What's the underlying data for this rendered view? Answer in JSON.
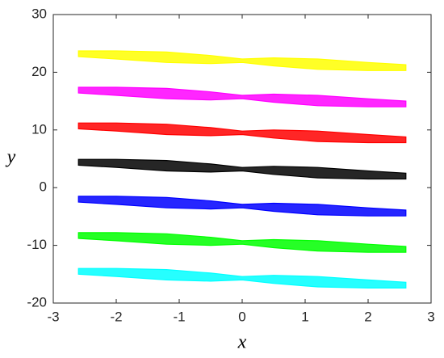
{
  "chart_data": {
    "type": "area",
    "x_label": "x",
    "y_label": "y",
    "xlim": [
      -3,
      3
    ],
    "xticks": [
      -3,
      -2,
      -1,
      0,
      1,
      2,
      3
    ],
    "ylim": [
      -20,
      30
    ],
    "yticks": [
      -20,
      -10,
      0,
      10,
      20,
      30
    ],
    "series": [
      {
        "color": "#ffff00",
        "x": [
          -2.6,
          -2,
          -1.2,
          -0.5,
          0,
          0.5,
          1.2,
          2,
          2.6,
          2.6,
          2,
          1.2,
          0.5,
          0,
          -0.5,
          -1.2,
          -2,
          -2.6
        ],
        "values": [
          23.7,
          23.7,
          23.5,
          22.9,
          22.3,
          22.5,
          22.3,
          21.7,
          21.3,
          20.3,
          20.3,
          20.5,
          21.1,
          21.7,
          21.5,
          21.7,
          22.3,
          22.7
        ]
      },
      {
        "color": "#ff00ff",
        "x": [
          -2.6,
          -2,
          -1.2,
          -0.5,
          0,
          0.5,
          1.2,
          2,
          2.6,
          2.6,
          2,
          1.2,
          0.5,
          0,
          -0.5,
          -1.2,
          -2,
          -2.6
        ],
        "values": [
          17.4,
          17.4,
          17.2,
          16.6,
          16,
          16.2,
          16,
          15.4,
          15,
          14,
          14,
          14.2,
          14.8,
          15.4,
          15.2,
          15.4,
          16,
          16.4
        ]
      },
      {
        "color": "#ff0000",
        "x": [
          -2.6,
          -2,
          -1.2,
          -0.5,
          0,
          0.5,
          1.2,
          2,
          2.6,
          2.6,
          2,
          1.2,
          0.5,
          0,
          -0.5,
          -1.2,
          -2,
          -2.6
        ],
        "values": [
          11.2,
          11.2,
          11,
          10.4,
          9.8,
          10,
          9.8,
          9.2,
          8.8,
          7.8,
          7.8,
          8,
          8.6,
          9.2,
          9,
          9.2,
          9.8,
          10.2
        ]
      },
      {
        "color": "#000000",
        "x": [
          -2.6,
          -2,
          -1.2,
          -0.5,
          0,
          0.5,
          1.2,
          2,
          2.6,
          2.6,
          2,
          1.2,
          0.5,
          0,
          -0.5,
          -1.2,
          -2,
          -2.6
        ],
        "values": [
          4.9,
          4.9,
          4.7,
          4.1,
          3.5,
          3.7,
          3.5,
          2.9,
          2.5,
          1.5,
          1.5,
          1.7,
          2.3,
          2.9,
          2.7,
          2.9,
          3.5,
          3.9
        ]
      },
      {
        "color": "#0000ff",
        "x": [
          -2.6,
          -2,
          -1.2,
          -0.5,
          0,
          0.5,
          1.2,
          2,
          2.6,
          2.6,
          2,
          1.2,
          0.5,
          0,
          -0.5,
          -1.2,
          -2,
          -2.6
        ],
        "values": [
          -1.5,
          -1.5,
          -1.7,
          -2.3,
          -2.9,
          -2.7,
          -2.9,
          -3.5,
          -3.9,
          -4.9,
          -4.9,
          -4.7,
          -4.1,
          -3.5,
          -3.7,
          -3.5,
          -2.9,
          -2.5
        ]
      },
      {
        "color": "#00ff00",
        "x": [
          -2.6,
          -2,
          -1.2,
          -0.5,
          0,
          0.5,
          1.2,
          2,
          2.6,
          2.6,
          2,
          1.2,
          0.5,
          0,
          -0.5,
          -1.2,
          -2,
          -2.6
        ],
        "values": [
          -7.8,
          -7.8,
          -8,
          -8.6,
          -9.2,
          -9,
          -9.2,
          -9.8,
          -10.2,
          -11.2,
          -11.2,
          -11,
          -10.4,
          -9.8,
          -10,
          -9.8,
          -9.2,
          -8.8
        ]
      },
      {
        "color": "#00ffff",
        "x": [
          -2.6,
          -2,
          -1.2,
          -0.5,
          0,
          0.5,
          1.2,
          2,
          2.6,
          2.6,
          2,
          1.2,
          0.5,
          0,
          -0.5,
          -1.2,
          -2,
          -2.6
        ],
        "values": [
          -14,
          -14,
          -14.2,
          -14.8,
          -15.4,
          -15.2,
          -15.4,
          -16,
          -16.4,
          -17.4,
          -17.4,
          -17.2,
          -16.6,
          -16,
          -16.2,
          -16,
          -15.4,
          -15
        ]
      }
    ]
  }
}
